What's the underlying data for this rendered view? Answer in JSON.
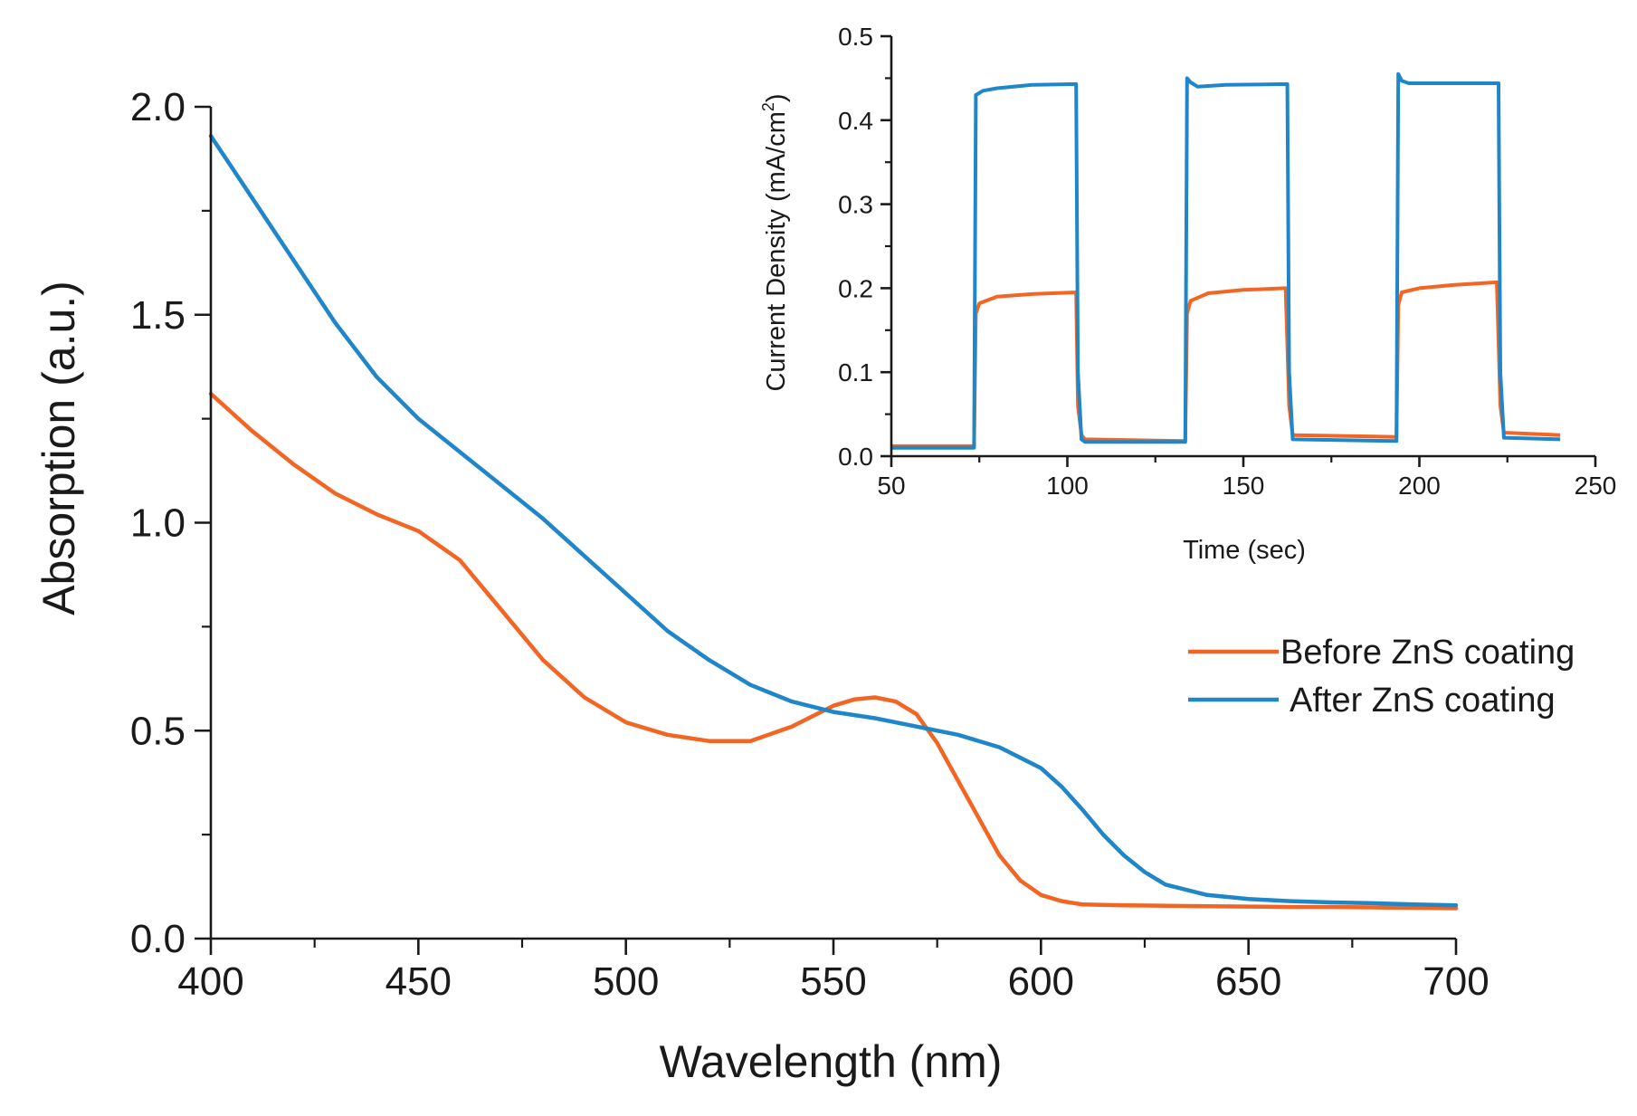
{
  "colors": {
    "before": "#f26522",
    "after": "#1f87c9",
    "axis": "#1a1a1a"
  },
  "chart_data": [
    {
      "type": "line",
      "xlabel": "Wavelength (nm)",
      "ylabel": "Absorption (a.u.)",
      "xlim": [
        400,
        700
      ],
      "ylim": [
        0,
        2.0
      ],
      "xticks": [
        400,
        450,
        500,
        550,
        600,
        650,
        700
      ],
      "yticks": [
        0.0,
        0.5,
        1.0,
        1.5,
        2.0
      ],
      "xtick_labels": [
        "400",
        "450",
        "500",
        "550",
        "600",
        "650",
        "700"
      ],
      "ytick_labels": [
        "0.0",
        "0.5",
        "1.0",
        "1.5",
        "2.0"
      ],
      "legend": {
        "position": "center-right",
        "entries": [
          "Before ZnS coating",
          "After ZnS coating"
        ]
      },
      "series": [
        {
          "name": "Before ZnS coating",
          "color": "#f26522",
          "x": [
            400,
            410,
            420,
            430,
            440,
            450,
            460,
            470,
            480,
            490,
            500,
            510,
            520,
            530,
            540,
            550,
            555,
            560,
            565,
            570,
            575,
            580,
            585,
            590,
            595,
            600,
            605,
            610,
            620,
            630,
            640,
            650,
            660,
            670,
            680,
            690,
            700
          ],
          "y": [
            1.31,
            1.22,
            1.14,
            1.07,
            1.02,
            0.98,
            0.91,
            0.79,
            0.67,
            0.58,
            0.52,
            0.49,
            0.475,
            0.475,
            0.51,
            0.56,
            0.575,
            0.58,
            0.57,
            0.54,
            0.47,
            0.38,
            0.29,
            0.2,
            0.14,
            0.105,
            0.09,
            0.082,
            0.08,
            0.079,
            0.078,
            0.077,
            0.076,
            0.076,
            0.075,
            0.074,
            0.073
          ]
        },
        {
          "name": "After ZnS coating",
          "color": "#1f87c9",
          "x": [
            400,
            410,
            420,
            430,
            440,
            450,
            460,
            470,
            480,
            490,
            500,
            510,
            520,
            530,
            540,
            550,
            560,
            570,
            580,
            590,
            600,
            605,
            610,
            615,
            620,
            625,
            630,
            640,
            650,
            660,
            670,
            680,
            690,
            700
          ],
          "y": [
            1.93,
            1.78,
            1.63,
            1.48,
            1.35,
            1.25,
            1.17,
            1.09,
            1.01,
            0.92,
            0.83,
            0.74,
            0.67,
            0.61,
            0.57,
            0.545,
            0.53,
            0.51,
            0.49,
            0.46,
            0.41,
            0.365,
            0.31,
            0.25,
            0.2,
            0.16,
            0.13,
            0.105,
            0.095,
            0.09,
            0.087,
            0.085,
            0.082,
            0.08
          ]
        }
      ]
    },
    {
      "type": "line",
      "xlabel": "Time (sec)",
      "ylabel": "Current Density (mA/cm2)",
      "ylabel_main": "Current Density (mA/cm",
      "ylabel_sup": "2",
      "ylabel_close": ")",
      "xlim": [
        50,
        250
      ],
      "ylim": [
        0,
        0.5
      ],
      "xticks": [
        50,
        100,
        150,
        200,
        250
      ],
      "yticks": [
        0.0,
        0.1,
        0.2,
        0.3,
        0.4,
        0.5
      ],
      "xtick_labels": [
        "50",
        "100",
        "150",
        "200",
        "250"
      ],
      "ytick_labels": [
        "0.0",
        "0.1",
        "0.2",
        "0.3",
        "0.4",
        "0.5"
      ],
      "series": [
        {
          "name": "Before ZnS coating",
          "color": "#f26522",
          "x": [
            50,
            73.5,
            74,
            75,
            80,
            90,
            102.5,
            103,
            104,
            105,
            133.5,
            134,
            135,
            140,
            150,
            162,
            163,
            164,
            193.5,
            194,
            195,
            200,
            210,
            222,
            223,
            224,
            240
          ],
          "y": [
            0.012,
            0.012,
            0.17,
            0.182,
            0.19,
            0.193,
            0.195,
            0.06,
            0.025,
            0.02,
            0.018,
            0.17,
            0.185,
            0.194,
            0.198,
            0.2,
            0.06,
            0.025,
            0.023,
            0.18,
            0.195,
            0.2,
            0.204,
            0.207,
            0.06,
            0.028,
            0.025
          ]
        },
        {
          "name": "After ZnS coating",
          "color": "#1f87c9",
          "x": [
            50,
            73.5,
            74,
            76,
            80,
            90,
            102.5,
            103,
            104,
            105,
            133.5,
            134,
            135,
            137,
            145,
            162.5,
            163,
            164,
            193.5,
            194,
            195,
            197,
            205,
            222.5,
            223,
            224,
            240
          ],
          "y": [
            0.01,
            0.01,
            0.43,
            0.435,
            0.438,
            0.442,
            0.443,
            0.1,
            0.02,
            0.017,
            0.017,
            0.45,
            0.445,
            0.44,
            0.442,
            0.443,
            0.1,
            0.02,
            0.018,
            0.455,
            0.447,
            0.444,
            0.444,
            0.444,
            0.1,
            0.022,
            0.02
          ]
        }
      ]
    }
  ]
}
